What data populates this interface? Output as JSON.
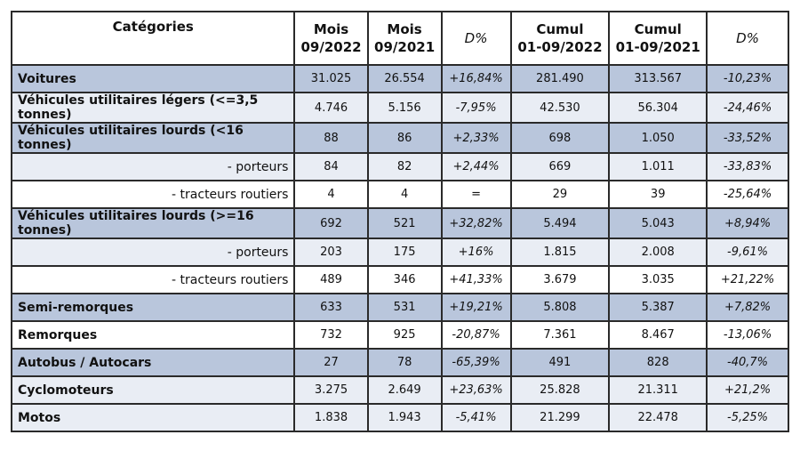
{
  "table": {
    "header": [
      "Catégories",
      "Mois\n09/2022",
      "Mois\n09/2021",
      "D%",
      "Cumul\n01-09/2022",
      "Cumul\n01-09/2021",
      "D%"
    ],
    "rows": [
      [
        "Voitures",
        "31.025",
        "26.554",
        "+16,84%",
        "281.490",
        "313.567",
        "-10,23%"
      ],
      [
        "Véhicules utilitaires légers (<=3,5 tonnes)",
        "4.746",
        "5.156",
        "-7,95%",
        "42.530",
        "56.304",
        "-24,46%"
      ],
      [
        "Véhicules utilitaires lourds (<16 tonnes)",
        "88",
        "86",
        "+2,33%",
        "698",
        "1.050",
        "-33,52%"
      ],
      [
        "- porteurs",
        "84",
        "82",
        "+2,44%",
        "669",
        "1.011",
        "-33,83%"
      ],
      [
        "- tracteurs routiers",
        "4",
        "4",
        "=",
        "29",
        "39",
        "-25,64%"
      ],
      [
        "Véhicules utilitaires lourds (>=16 tonnes)",
        "692",
        "521",
        "+32,82%",
        "5.494",
        "5.043",
        "+8,94%"
      ],
      [
        "- porteurs",
        "203",
        "175",
        "+16%",
        "1.815",
        "2.008",
        "-9,61%"
      ],
      [
        "- tracteurs routiers",
        "489",
        "346",
        "+41,33%",
        "3.679",
        "3.035",
        "+21,22%"
      ],
      [
        "Semi-remorques",
        "633",
        "531",
        "+19,21%",
        "5.808",
        "5.387",
        "+7,82%"
      ],
      [
        "Remorques",
        "732",
        "925",
        "-20,87%",
        "7.361",
        "8.467",
        "-13,06%"
      ],
      [
        "Autobus / Autocars",
        "27",
        "78",
        "-65,39%",
        "491",
        "828",
        "-40,7%"
      ],
      [
        "Cyclomoteurs",
        "3.275",
        "2.649",
        "+23,63%",
        "25.828",
        "21.311",
        "+21,2%"
      ],
      [
        "Motos",
        "1.838",
        "1.943",
        "-5,41%",
        "21.299",
        "22.478",
        "-5,25%"
      ]
    ]
  }
}
